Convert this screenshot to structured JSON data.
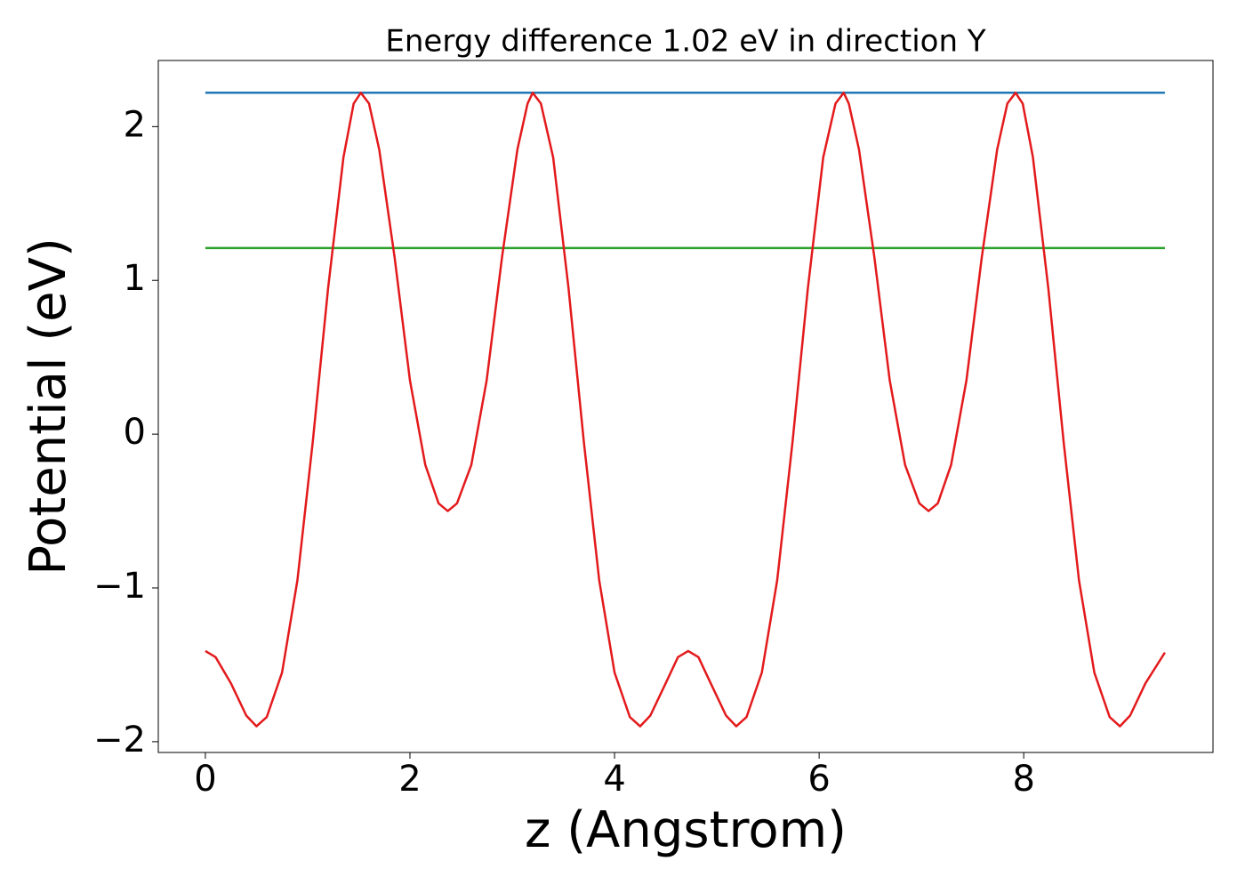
{
  "chart_data": {
    "type": "line",
    "title": "Energy difference 1.02 eV in direction Y",
    "x_label": "z (Angstrom)",
    "y_label": "Potential (eV)",
    "xlim": [
      -0.46,
      9.85
    ],
    "ylim": [
      -2.07,
      2.43
    ],
    "xticks": [
      0,
      2,
      4,
      6,
      8
    ],
    "yticks": [
      {
        "value": -2,
        "label": "−2"
      },
      {
        "value": -1,
        "label": "−1"
      },
      0,
      1,
      2
    ],
    "series": [
      {
        "color": "#1f77b4",
        "x": [
          0,
          9.38
        ],
        "values": [
          2.22,
          2.22
        ]
      },
      {
        "color": "#2ca02c",
        "x": [
          0,
          9.38
        ],
        "values": [
          1.21,
          1.21
        ]
      },
      {
        "color": "#e31a1c",
        "x": [
          0,
          0.1,
          0.25,
          0.4,
          0.5,
          0.6,
          0.75,
          0.9,
          1.05,
          1.2,
          1.35,
          1.45,
          1.52,
          1.6,
          1.7,
          1.85,
          2.0,
          2.15,
          2.28,
          2.37,
          2.46,
          2.6,
          2.75,
          2.9,
          3.05,
          3.15,
          3.2,
          3.28,
          3.4,
          3.55,
          3.7,
          3.85,
          4.0,
          4.15,
          4.25,
          4.35,
          4.5,
          4.62,
          4.72,
          4.82,
          4.94,
          5.09,
          5.19,
          5.29,
          5.44,
          5.59,
          5.74,
          5.89,
          6.04,
          6.16,
          6.24,
          6.29,
          6.39,
          6.54,
          6.69,
          6.84,
          6.98,
          7.07,
          7.16,
          7.29,
          7.44,
          7.59,
          7.74,
          7.84,
          7.92,
          7.99,
          8.09,
          8.24,
          8.39,
          8.54,
          8.69,
          8.84,
          8.94,
          9.04,
          9.19,
          9.38
        ],
        "values": [
          -1.41,
          -1.45,
          -1.62,
          -1.83,
          -1.9,
          -1.84,
          -1.55,
          -0.95,
          -0.05,
          0.95,
          1.8,
          2.15,
          2.22,
          2.15,
          1.85,
          1.15,
          0.35,
          -0.2,
          -0.45,
          -0.5,
          -0.45,
          -0.2,
          0.35,
          1.15,
          1.85,
          2.15,
          2.22,
          2.15,
          1.8,
          0.95,
          -0.05,
          -0.95,
          -1.55,
          -1.84,
          -1.9,
          -1.83,
          -1.62,
          -1.45,
          -1.41,
          -1.45,
          -1.62,
          -1.83,
          -1.9,
          -1.84,
          -1.55,
          -0.95,
          -0.05,
          0.95,
          1.8,
          2.15,
          2.22,
          2.15,
          1.85,
          1.15,
          0.35,
          -0.2,
          -0.45,
          -0.5,
          -0.45,
          -0.2,
          0.35,
          1.15,
          1.85,
          2.15,
          2.22,
          2.15,
          1.8,
          0.95,
          -0.05,
          -0.95,
          -1.55,
          -1.84,
          -1.9,
          -1.83,
          -1.62,
          -1.42
        ]
      }
    ]
  }
}
